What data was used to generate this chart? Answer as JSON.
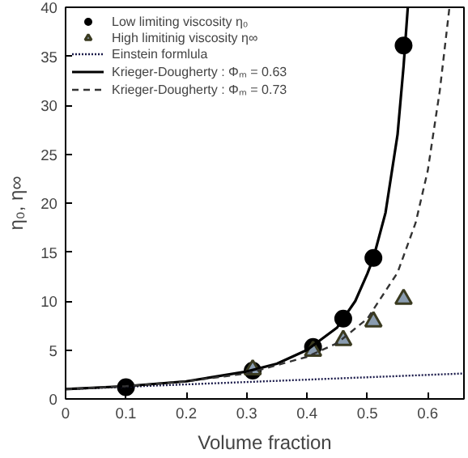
{
  "chart_data": {
    "type": "scatter",
    "xlabel": "Volume fraction",
    "ylabel": "η₀, η∞",
    "xlim": [
      0,
      0.66
    ],
    "ylim": [
      0,
      40
    ],
    "xticks": [
      0,
      0.1,
      0.2,
      0.3,
      0.4,
      0.5,
      0.6
    ],
    "yticks": [
      0,
      5,
      10,
      15,
      20,
      25,
      30,
      35,
      40
    ],
    "grid": false,
    "legend": "top left",
    "series": [
      {
        "name": "Low limiting viscosity η₀",
        "marker": "circle",
        "color": "#000000",
        "x": [
          0.1,
          0.31,
          0.41,
          0.46,
          0.51,
          0.56
        ],
        "values": [
          1.2,
          2.9,
          5.3,
          8.2,
          14.4,
          36.1
        ]
      },
      {
        "name": "High limitinig viscosity η∞",
        "marker": "triangle",
        "color": "#8a9cb0",
        "x": [
          0.31,
          0.41,
          0.46,
          0.51,
          0.56
        ],
        "values": [
          3.0,
          4.9,
          6.0,
          7.9,
          10.2
        ]
      },
      {
        "name": "Einstein formlula",
        "type": "line",
        "line_style": "dotted",
        "color": "#1a1a4a",
        "x": [
          0,
          0.66
        ],
        "values": [
          1.0,
          2.6
        ]
      },
      {
        "name": "Krieger-Dougherty : Φₘ = 0.63",
        "type": "line",
        "line_style": "solid",
        "color": "#000000",
        "x": [
          0,
          0.1,
          0.2,
          0.3,
          0.35,
          0.4,
          0.45,
          0.48,
          0.5,
          0.51,
          0.53,
          0.55,
          0.56,
          0.567
        ],
        "values": [
          1.0,
          1.3,
          1.8,
          2.8,
          3.6,
          5.0,
          7.3,
          10.0,
          12.8,
          14.4,
          19.0,
          27.0,
          34.0,
          40.0
        ]
      },
      {
        "name": "Krieger-Dougherty : Φₘ = 0.73",
        "type": "line",
        "line_style": "dashed",
        "color": "#333333",
        "x": [
          0,
          0.1,
          0.2,
          0.3,
          0.4,
          0.45,
          0.5,
          0.55,
          0.58,
          0.6,
          0.62,
          0.636
        ],
        "values": [
          1.0,
          1.3,
          1.8,
          2.6,
          4.3,
          5.7,
          8.2,
          12.9,
          18.0,
          23.3,
          31.5,
          40.0
        ]
      }
    ]
  }
}
